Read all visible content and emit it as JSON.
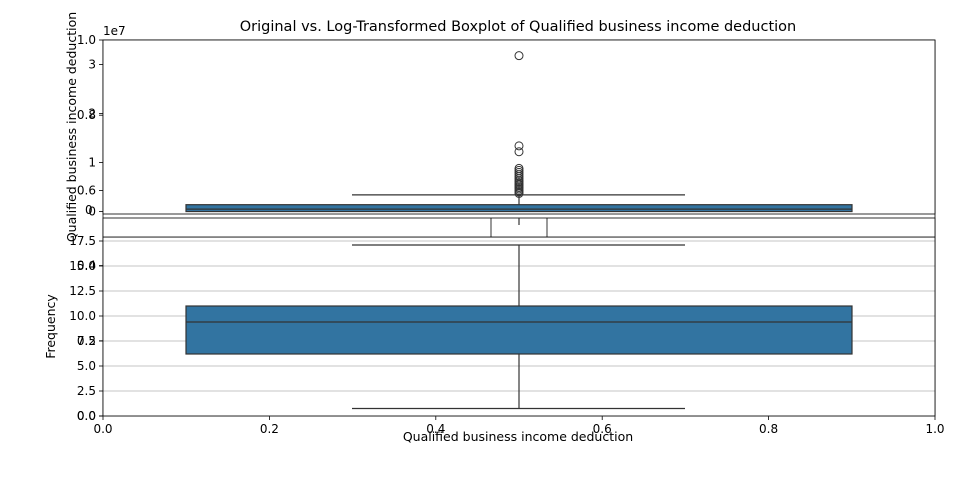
{
  "figure": {
    "title": "Original vs. Log-Transformed Boxplot of Qualified business income deduction",
    "xlabel": "Qualified business income deduction",
    "colors": {
      "box_fill": "#3274a1",
      "median": "#333333",
      "grid": "#b0b0b0",
      "axes": "#000000"
    }
  },
  "chart_data": [
    {
      "type": "box",
      "panel": "original",
      "ylabel": "Qualified business income deduction",
      "offset_text": "1e7",
      "ylim": [
        -0.05,
        3.5
      ],
      "yticks": [
        0,
        1,
        2,
        3
      ],
      "ytick_labels": [
        "0",
        "1",
        "2",
        "3"
      ],
      "box": {
        "whisker_low": 0.0,
        "q1": 0.0,
        "median": 0.05,
        "q3": 0.14,
        "whisker_high": 0.34
      },
      "outliers": [
        3.18,
        1.34,
        1.22,
        0.88,
        0.84,
        0.8,
        0.76,
        0.72,
        0.68,
        0.64,
        0.61,
        0.58,
        0.55,
        0.52,
        0.49,
        0.46,
        0.43,
        0.4,
        0.37
      ],
      "grid": false
    },
    {
      "type": "box",
      "panel": "log",
      "ylabel": "Frequency",
      "ylim": [
        0,
        17.9
      ],
      "yticks": [
        0,
        2.5,
        5,
        7.5,
        10,
        12.5,
        15,
        17.5
      ],
      "ytick_labels": [
        "0.0",
        "2.5",
        "5.0",
        "7.5",
        "10.0",
        "12.5",
        "15.0",
        "17.5"
      ],
      "box": {
        "whisker_low": 0.75,
        "q1": 6.2,
        "median": 9.4,
        "q3": 11.0,
        "whisker_high": 17.1
      },
      "outliers": [],
      "grid": true
    }
  ],
  "overlay_axes": {
    "xlim": [
      0,
      1
    ],
    "ylim": [
      0,
      1
    ],
    "xticks": [
      0,
      0.2,
      0.4,
      0.6,
      0.8,
      1
    ],
    "xtick_labels": [
      "0.0",
      "0.2",
      "0.4",
      "0.6",
      "0.8",
      "1.0"
    ],
    "yticks": [
      0,
      0.2,
      0.4,
      0.6,
      0.8,
      1
    ],
    "ytick_labels": [
      "0.0",
      "0.2",
      "0.4",
      "0.6",
      "0.8",
      "1.0"
    ]
  },
  "mid_ticks": {
    "xtick_labels": [
      "0.0",
      "0.2",
      "0.4",
      "0.6",
      "0.8",
      "1.0",
      "0.0",
      "0.2",
      "0.4",
      "0.6",
      "0.8",
      "1.0"
    ]
  }
}
